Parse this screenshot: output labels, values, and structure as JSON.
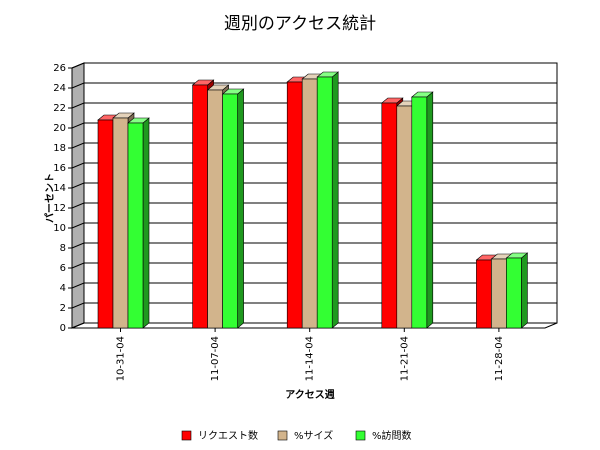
{
  "chart_data": {
    "type": "bar",
    "title": "週別のアクセス統計",
    "x_label": "アクセス週",
    "y_label": "パーセント",
    "categories": [
      "10-31-04",
      "11-07-04",
      "11-14-04",
      "11-21-04",
      "11-28-04"
    ],
    "series": [
      {
        "name": "リクエスト数",
        "color": "#ff0000",
        "values": [
          20.8,
          24.3,
          24.6,
          22.5,
          6.8
        ]
      },
      {
        "name": "%サイズ",
        "color": "#d2b48c",
        "values": [
          21.0,
          23.8,
          24.9,
          22.2,
          6.9
        ]
      },
      {
        "name": "%訪問数",
        "color": "#33ff33",
        "values": [
          20.5,
          23.4,
          25.1,
          23.1,
          7.0
        ]
      }
    ],
    "ylim": [
      0,
      26
    ],
    "yticks": [
      0,
      2,
      4,
      6,
      8,
      10,
      12,
      14,
      16,
      18,
      20,
      22,
      24,
      26
    ],
    "grid": true
  }
}
